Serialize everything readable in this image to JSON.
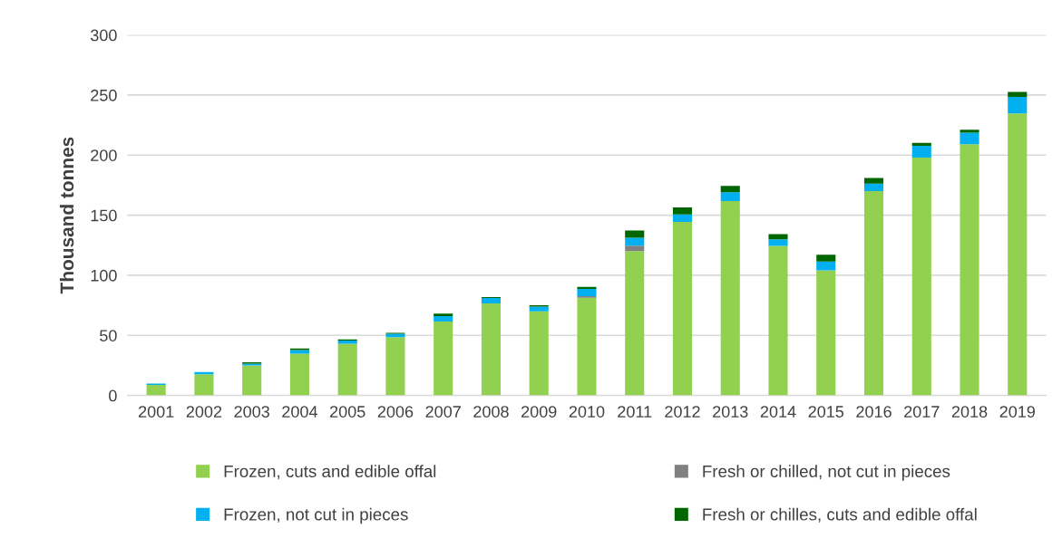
{
  "chart_data": {
    "type": "bar",
    "stacked": true,
    "ylabel": "Thousand tonnes",
    "categories": [
      "2001",
      "2002",
      "2003",
      "2004",
      "2005",
      "2006",
      "2007",
      "2008",
      "2009",
      "2010",
      "2011",
      "2012",
      "2013",
      "2014",
      "2015",
      "2016",
      "2017",
      "2018",
      "2019"
    ],
    "series": [
      {
        "name": "Frozen, cuts and edible offal",
        "color": "#92d050",
        "values": [
          8.7,
          17.6,
          25,
          34.7,
          43.1,
          48.5,
          61.5,
          76.5,
          69.9,
          81.3,
          120.1,
          144.4,
          161.8,
          124.5,
          104,
          170,
          197.9,
          209.1,
          234.7
        ]
      },
      {
        "name": "Fresh or chilled, not cut in pieces",
        "color": "#808080",
        "values": [
          0,
          0,
          0,
          0,
          0,
          0,
          0,
          0,
          0,
          1.4,
          4.6,
          0,
          0,
          0,
          0,
          0,
          0,
          0,
          0
        ]
      },
      {
        "name": "Frozen, not cut in pieces",
        "color": "#00b0f0",
        "values": [
          1.2,
          1.8,
          1.5,
          3.1,
          2.6,
          2.8,
          4.6,
          4.6,
          4.1,
          6,
          6.6,
          6.3,
          7.4,
          5.4,
          7.4,
          6.3,
          9.8,
          9.5,
          13.7
        ]
      },
      {
        "name": "Fresh or chilles, cuts and edible offal",
        "color": "#006600",
        "values": [
          0,
          0,
          1,
          1.2,
          1,
          0.7,
          2,
          0.8,
          1,
          1.6,
          6,
          5.7,
          5.2,
          4.4,
          5.7,
          4.7,
          2.5,
          2.5,
          4.1
        ]
      }
    ],
    "ylim": [
      0,
      300
    ],
    "yticks": [
      0,
      50,
      100,
      150,
      200,
      250,
      300
    ],
    "grid": "y",
    "legend": "bottom"
  }
}
